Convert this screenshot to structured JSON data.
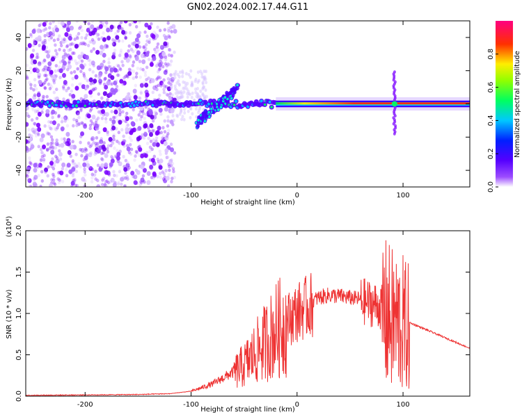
{
  "figure": {
    "title": "GN02.2024.002.17.44.G11"
  },
  "chart_data": [
    {
      "type": "heatmap",
      "xlabel": "Height of straight line (km)",
      "ylabel": "Frequency (Hz)",
      "xlim": [
        -256,
        163
      ],
      "ylim": [
        -50,
        50
      ],
      "xticks": [
        -200,
        -100,
        0,
        100
      ],
      "yticks": [
        -40,
        -20,
        0,
        20,
        40
      ],
      "colorbar": {
        "label": "Normalized spectral amplitude",
        "range": [
          0.0,
          1.0
        ],
        "ticks": [
          0.0,
          0.2,
          0.4,
          0.6,
          0.8
        ],
        "colormap": [
          "#ffffff",
          "#7b00ff",
          "#0000ff",
          "#00ffff",
          "#00ff00",
          "#ffff00",
          "#ff0000",
          "#ff0080"
        ]
      },
      "features": {
        "noise_region_x": [
          -256,
          -120
        ],
        "carrier_line_freq": 0,
        "strong_line_x": [
          -20,
          163
        ],
        "spike_x": 92,
        "spike_freq_range": [
          -18,
          20
        ],
        "tilted_band_x": [
          -95,
          -55
        ],
        "tilted_band_freq": [
          -12,
          10
        ]
      }
    },
    {
      "type": "line",
      "xlabel": "Height of straight line (km)",
      "ylabel": "SNR (10 * v/v)",
      "scale_label": "(x10⁴)",
      "xlim": [
        -256,
        163
      ],
      "ylim": [
        0.0,
        2.0
      ],
      "xticks": [
        -200,
        -100,
        0,
        100
      ],
      "yticks": [
        0.0,
        0.5,
        1.0,
        1.5,
        2.0
      ],
      "color": "#ee3333",
      "series": [
        {
          "x": [
            -256,
            -200,
            -150,
            -120,
            -100,
            -80,
            -60,
            -50,
            -40,
            -30,
            -20,
            -10,
            0,
            10,
            20,
            30,
            40,
            50,
            60,
            70,
            80,
            90,
            100,
            104,
            110,
            130,
            163
          ],
          "values": [
            0.01,
            0.015,
            0.02,
            0.03,
            0.06,
            0.15,
            0.3,
            0.4,
            0.55,
            0.7,
            0.85,
            0.95,
            1.05,
            1.12,
            1.2,
            1.23,
            1.22,
            1.2,
            1.18,
            1.15,
            1.1,
            1.0,
            0.95,
            0.9,
            0.87,
            0.76,
            0.58
          ]
        }
      ]
    }
  ]
}
